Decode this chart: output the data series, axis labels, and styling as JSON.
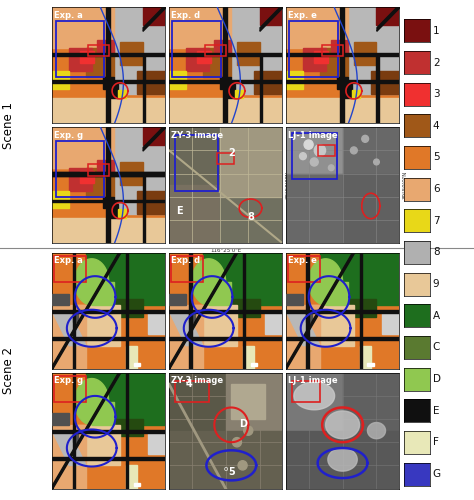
{
  "scene1_label": "Scene 1",
  "scene2_label": "Scene 2",
  "panel_labels_row1": [
    "Exp. a",
    "Exp. d",
    "Exp. e"
  ],
  "panel_labels_row2": [
    "Exp. g",
    "ZY-3 image",
    "LJ-1 image"
  ],
  "panel_labels_row3": [
    "Exp. a",
    "Exp. d",
    "Exp. e"
  ],
  "panel_labels_row4": [
    "Exp. g",
    "ZY-3 image",
    "LJ-1 image"
  ],
  "legend_items": [
    {
      "label": "1",
      "color": "#7a1010"
    },
    {
      "label": "2",
      "color": "#c03030"
    },
    {
      "label": "3",
      "color": "#f03030"
    },
    {
      "label": "4",
      "color": "#a05818"
    },
    {
      "label": "5",
      "color": "#e07828"
    },
    {
      "label": "6",
      "color": "#e8a870"
    },
    {
      "label": "7",
      "color": "#e8d818"
    },
    {
      "label": "8",
      "color": "#b0b0b0"
    },
    {
      "label": "9",
      "color": "#e8c898"
    },
    {
      "label": "A",
      "color": "#1e6e1e"
    },
    {
      "label": "C",
      "color": "#5a7a30"
    },
    {
      "label": "D",
      "color": "#90c850"
    },
    {
      "label": "E",
      "color": "#101010"
    },
    {
      "label": "F",
      "color": "#e8e8b8"
    },
    {
      "label": "G",
      "color": "#3838c0"
    }
  ],
  "bg_color": "#ffffff",
  "separator_color": "#888888",
  "figsize": [
    4.74,
    5.0
  ],
  "dpi": 100
}
